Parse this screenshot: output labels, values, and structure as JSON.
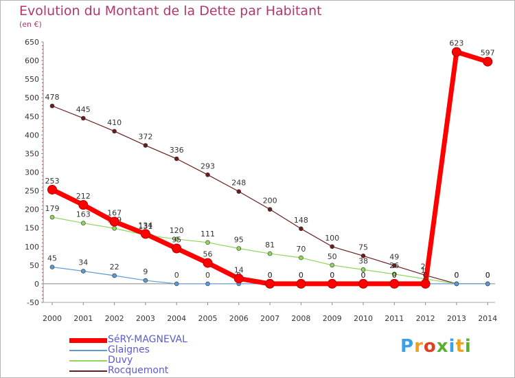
{
  "title": "Evolution du Montant de la Dette par Habitant",
  "unit": "(en €)",
  "brand": "Proxiti",
  "brand_colors": [
    "#3aa0e8",
    "#f0a020",
    "#e04020",
    "#58b030",
    "#3aa0e8",
    "#f0a020",
    "#58b030"
  ],
  "chart_data": {
    "type": "line",
    "categories": [
      "2000",
      "2001",
      "2002",
      "2003",
      "2004",
      "2005",
      "2006",
      "2007",
      "2008",
      "2009",
      "2010",
      "2011",
      "2012",
      "2013",
      "2014"
    ],
    "ylim": [
      -50,
      650
    ],
    "yticks": [
      -50,
      0,
      50,
      100,
      150,
      200,
      250,
      300,
      350,
      400,
      450,
      500,
      550,
      600,
      650
    ],
    "grid": false,
    "legend_position": "bottom-left",
    "series": [
      {
        "name": "Rocquemont",
        "color": "#6b1d1d",
        "width": 1.2,
        "marker": 3,
        "values": [
          478,
          445,
          410,
          372,
          336,
          293,
          248,
          200,
          148,
          100,
          75,
          49,
          23,
          0,
          0
        ],
        "labels": [
          "478",
          "445",
          "410",
          "372",
          "336",
          "293",
          "248",
          "200",
          "148",
          "100",
          "75",
          "49",
          "23",
          "0",
          "0"
        ]
      },
      {
        "name": "Duvy",
        "color": "#8fd65a",
        "width": 1.2,
        "marker": 3,
        "values": [
          179,
          163,
          149,
          131,
          120,
          111,
          95,
          81,
          70,
          50,
          38,
          26,
          13,
          0,
          0
        ],
        "labels": [
          "179",
          "163",
          "149",
          "131",
          "120",
          "111",
          "95",
          "81",
          "70",
          "50",
          "38",
          "26",
          "13",
          "0",
          "0"
        ]
      },
      {
        "name": "Glaignes",
        "color": "#5b9bd5",
        "width": 1.2,
        "marker": 3,
        "values": [
          45,
          34,
          22,
          9,
          0,
          0,
          0,
          0,
          0,
          0,
          0,
          0,
          0,
          0,
          0
        ],
        "labels": [
          "45",
          "34",
          "22",
          "9",
          "0",
          "0",
          "0",
          "0",
          "0",
          "0",
          "0",
          "0",
          "0",
          "0",
          "0"
        ]
      },
      {
        "name": "SéRY-MAGNEVAL",
        "color": "#ff0000",
        "width": 7,
        "marker": 6.5,
        "values": [
          253,
          212,
          167,
          134,
          95,
          56,
          14,
          0,
          0,
          0,
          0,
          0,
          0,
          623,
          597
        ],
        "labels": [
          "253",
          "212",
          "167",
          "134",
          "95",
          "56",
          "14",
          "0",
          "0",
          "0",
          "0",
          "0",
          "0",
          "623",
          "597"
        ]
      }
    ],
    "legend": [
      {
        "name": "SéRY-MAGNEVAL",
        "color": "#ff0000",
        "thickness": 7
      },
      {
        "name": "Glaignes",
        "color": "#5b9bd5",
        "thickness": 2
      },
      {
        "name": "Duvy",
        "color": "#8fd65a",
        "thickness": 2
      },
      {
        "name": "Rocquemont",
        "color": "#6b1d1d",
        "thickness": 2
      }
    ]
  }
}
